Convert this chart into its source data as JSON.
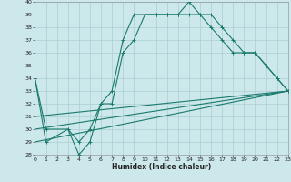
{
  "title": "",
  "xlabel": "Humidex (Indice chaleur)",
  "bg_color": "#cde8ea",
  "grid_color": "#aacfd2",
  "line_color": "#1a7a6e",
  "ylim": [
    28,
    40
  ],
  "xlim": [
    0,
    23
  ],
  "yticks": [
    28,
    29,
    30,
    31,
    32,
    33,
    34,
    35,
    36,
    37,
    38,
    39,
    40
  ],
  "xticks": [
    0,
    1,
    2,
    3,
    4,
    5,
    6,
    7,
    8,
    9,
    10,
    11,
    12,
    13,
    14,
    15,
    16,
    17,
    18,
    19,
    20,
    21,
    22,
    23
  ],
  "line1_x": [
    0,
    1,
    3,
    4,
    5,
    6,
    7,
    8,
    9,
    10,
    11,
    12,
    13,
    14,
    15,
    16,
    17,
    18,
    19,
    20,
    21,
    22,
    23
  ],
  "line1_y": [
    34,
    29,
    30,
    28,
    29,
    32,
    33,
    37,
    39,
    39,
    39,
    39,
    39,
    40,
    39,
    39,
    38,
    37,
    36,
    36,
    35,
    34,
    33
  ],
  "line2_x": [
    0,
    1,
    3,
    4,
    5,
    6,
    7,
    8,
    9,
    10,
    11,
    12,
    13,
    14,
    15,
    16,
    17,
    18,
    19,
    20,
    21,
    22,
    23
  ],
  "line2_y": [
    34,
    30,
    30,
    29,
    30,
    32,
    32,
    36,
    37,
    39,
    39,
    39,
    39,
    39,
    39,
    38,
    37,
    36,
    36,
    36,
    35,
    34,
    33
  ],
  "line3_x": [
    0,
    23
  ],
  "line3_y": [
    31,
    33
  ],
  "line4_x": [
    0,
    23
  ],
  "line4_y": [
    30,
    33
  ],
  "line5_x": [
    0,
    23
  ],
  "line5_y": [
    29,
    33
  ]
}
